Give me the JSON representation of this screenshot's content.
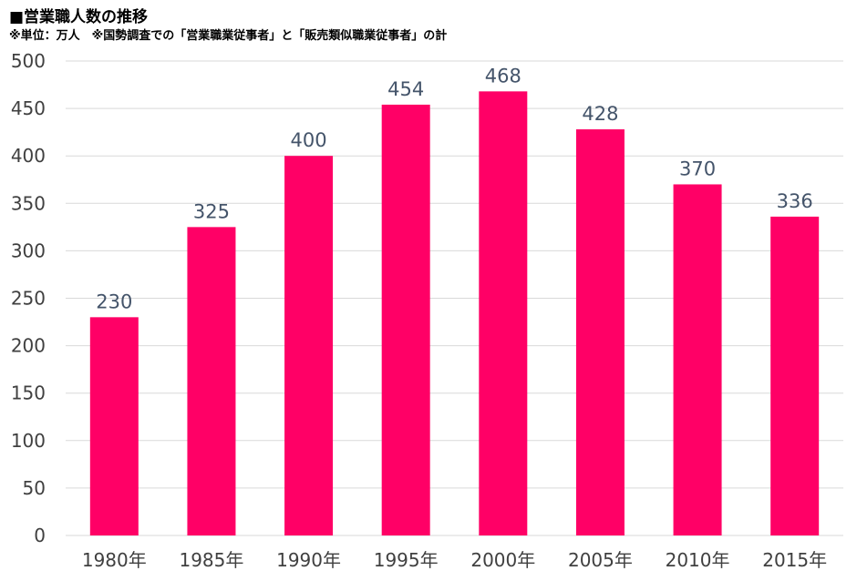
{
  "header": {
    "title": "■営業職人数の推移",
    "note": "※単位：万人　※国勢調査での「営業職業従事者」と「販売類似職業従事者」の計"
  },
  "colors": {
    "bar": "#ff0066",
    "grid": "#d9d9d9",
    "tick_text": "#404040",
    "data_label": "#44546a"
  },
  "chart_data": {
    "type": "bar",
    "title": "■営業職人数の推移",
    "subtitle": "※単位：万人　※国勢調査での「営業職業従事者」と「販売類似職業従事者」の計",
    "categories": [
      "1980年",
      "1985年",
      "1990年",
      "1995年",
      "2000年",
      "2005年",
      "2010年",
      "2015年"
    ],
    "values": [
      230,
      325,
      400,
      454,
      468,
      428,
      370,
      336
    ],
    "data_labels": [
      "230",
      "325",
      "400",
      "454",
      "468",
      "428",
      "370",
      "336"
    ],
    "xlabel": "",
    "ylabel": "",
    "ylim": [
      0,
      500
    ],
    "yticks": [
      "0",
      "50",
      "100",
      "150",
      "200",
      "250",
      "300",
      "350",
      "400",
      "450",
      "500"
    ],
    "grid": true,
    "legend": "none"
  }
}
